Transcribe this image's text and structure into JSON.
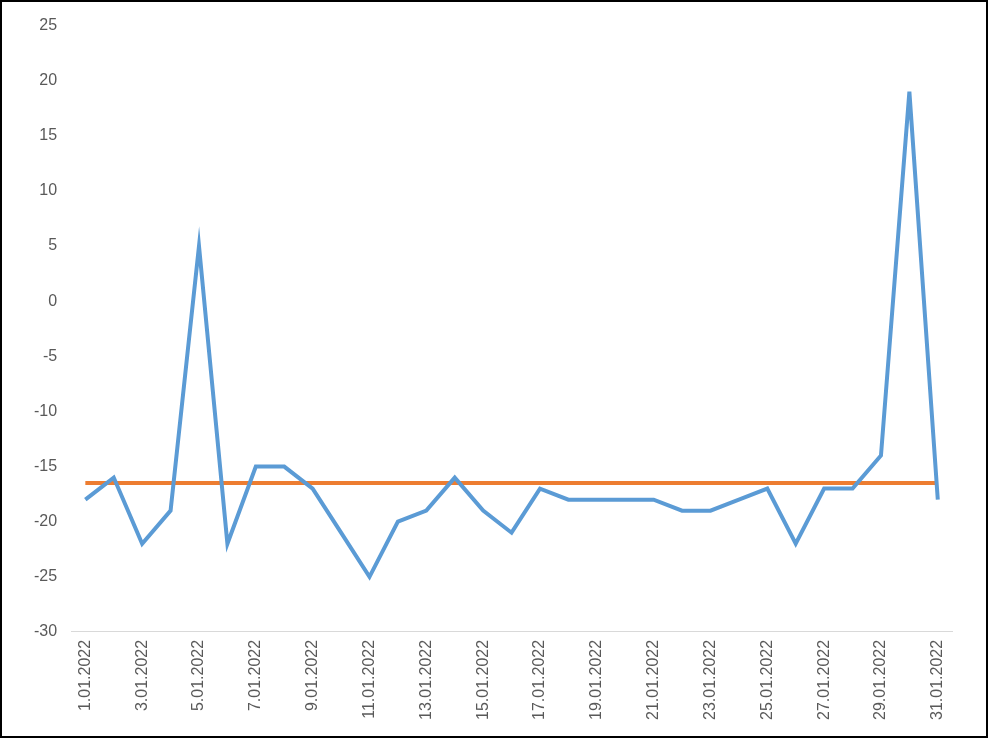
{
  "chart_data": {
    "type": "line",
    "categories": [
      "1.01.2022",
      null,
      "3.01.2022",
      null,
      "5.01.2022",
      null,
      "7.01.2022",
      null,
      "9.01.2022",
      null,
      "11.01.2022",
      null,
      "13.01.2022",
      null,
      "15.01.2022",
      null,
      "17.01.2022",
      null,
      "19.01.2022",
      null,
      "21.01.2022",
      null,
      "23.01.2022",
      null,
      "25.01.2022",
      null,
      "27.01.2022",
      null,
      "29.01.2022",
      null,
      "31.01.2022"
    ],
    "series": [
      {
        "color": "#5b9bd5",
        "values": [
          -18,
          -16,
          -22,
          -19,
          5,
          -22,
          -15,
          -15,
          -17,
          -21,
          -25,
          -20,
          -19,
          -16,
          -19,
          -21,
          -17,
          -18,
          -18,
          -18,
          -18,
          -19,
          -19,
          -18,
          -17,
          -22,
          -17,
          -17,
          -14,
          19,
          -18
        ]
      },
      {
        "color": "#ed7d31",
        "values": [
          -16.5,
          -16.5,
          -16.5,
          -16.5,
          -16.5,
          -16.5,
          -16.5,
          -16.5,
          -16.5,
          -16.5,
          -16.5,
          -16.5,
          -16.5,
          -16.5,
          -16.5,
          -16.5,
          -16.5,
          -16.5,
          -16.5,
          -16.5,
          -16.5,
          -16.5,
          -16.5,
          -16.5,
          -16.5,
          -16.5,
          -16.5,
          -16.5,
          -16.5,
          -16.5,
          -16.5
        ]
      }
    ],
    "ylim": [
      -30,
      25
    ],
    "yticks": [
      -30,
      -25,
      -20,
      -15,
      -10,
      -5,
      0,
      5,
      10,
      15,
      20,
      25
    ],
    "grid": false
  }
}
